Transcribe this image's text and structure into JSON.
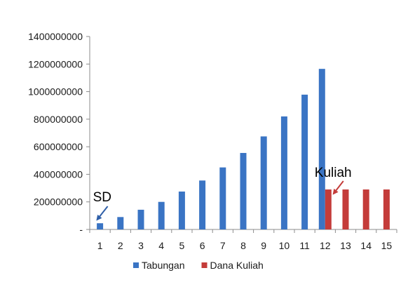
{
  "chart_data": {
    "type": "bar",
    "categories": [
      "1",
      "2",
      "3",
      "4",
      "5",
      "6",
      "7",
      "8",
      "9",
      "10",
      "11",
      "12",
      "13",
      "14",
      "15"
    ],
    "series": [
      {
        "name": "Tabungan",
        "color": "#3A74C4",
        "values": [
          45000000,
          90000000,
          143000000,
          200000000,
          275000000,
          355000000,
          450000000,
          555000000,
          675000000,
          820000000,
          978000000,
          1165000000,
          null,
          null,
          null
        ]
      },
      {
        "name": "Dana Kuliah",
        "color": "#C43C3A",
        "values": [
          null,
          null,
          null,
          null,
          null,
          null,
          null,
          null,
          null,
          null,
          null,
          290000000,
          290000000,
          290000000,
          290000000
        ]
      }
    ],
    "y_ticks": [
      "-",
      "200000000",
      "400000000",
      "600000000",
      "800000000",
      "1000000000",
      "1200000000",
      "1400000000"
    ],
    "ylim": [
      0,
      1400000000
    ],
    "grid": false,
    "legend_position": "bottom",
    "annotations": [
      {
        "text": "SD",
        "category": "1",
        "color": "#2F5FA8"
      },
      {
        "text": "Kuliah",
        "category": "12",
        "color": "#C43C3A"
      }
    ]
  }
}
